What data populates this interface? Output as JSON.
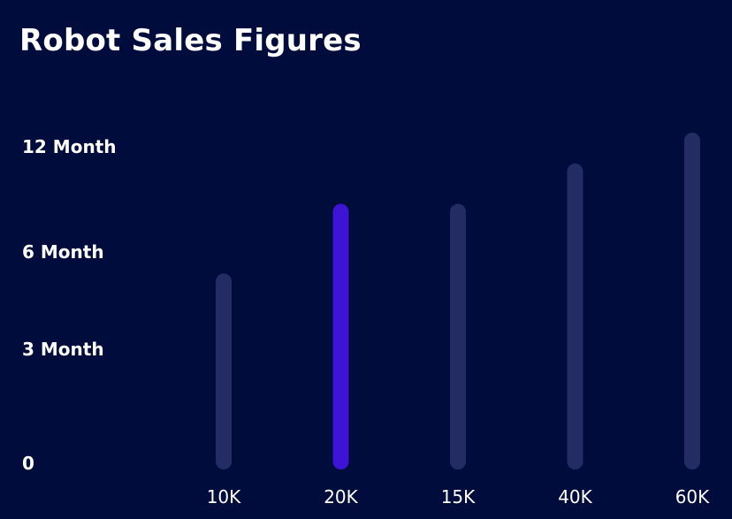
{
  "chart_data": {
    "type": "bar",
    "title": "Robot Sales Figures",
    "categories": [
      "10K",
      "20K",
      "15K",
      "40K",
      "60K"
    ],
    "values": [
      7.3,
      9.9,
      9.9,
      11.4,
      12.55
    ],
    "highlight_index": 1,
    "y_ticks": [
      {
        "value": 0,
        "label": "0"
      },
      {
        "value": 3,
        "label": "3 Month"
      },
      {
        "value": 6,
        "label": "6 Month"
      },
      {
        "value": 12,
        "label": "12 Month"
      }
    ],
    "ylim": [
      0,
      12.55
    ],
    "grid": false,
    "colors": {
      "background": "#000c3b",
      "bar": "#232d64",
      "bar_highlight": "#3d14d6",
      "text": "#ffffff"
    }
  }
}
